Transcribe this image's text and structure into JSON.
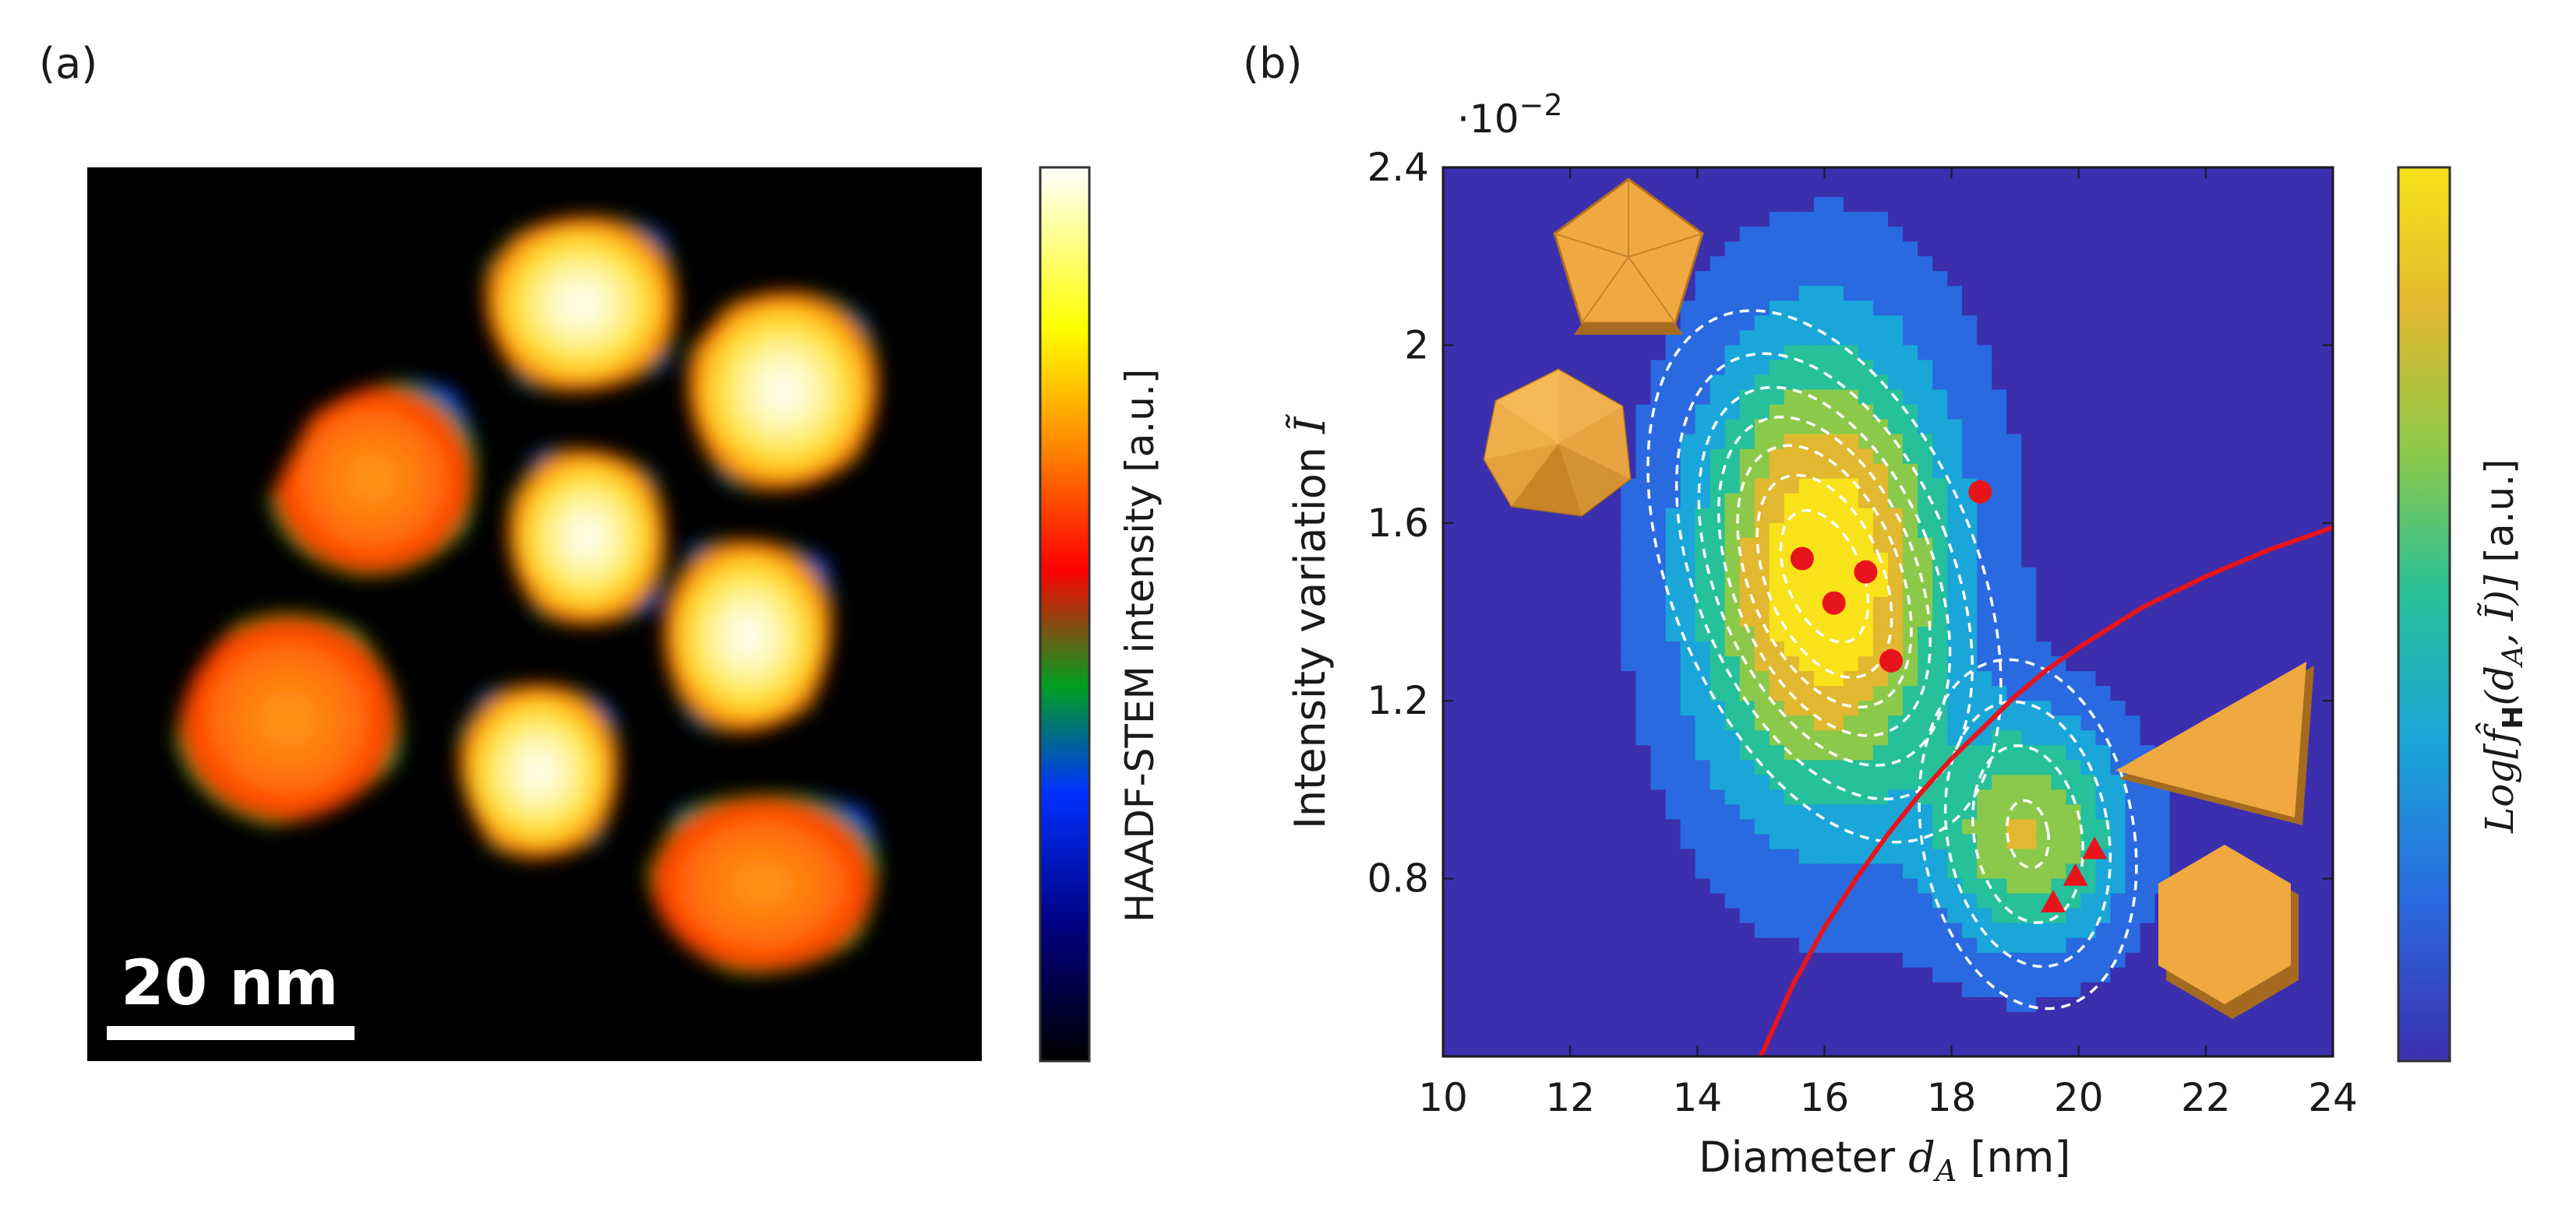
{
  "panels": {
    "a": {
      "label": "(a)",
      "scale_bar_text": "20 nm",
      "colorbar_label": "HAADF-STEM intensity [a.u.]"
    },
    "b": {
      "label": "(b)",
      "colorbar_label_math": "Log[f̂",
      "colorbar_label_sub": "H",
      "colorbar_label_args": "(d",
      "colorbar_label_args_sub": "A",
      "colorbar_label_args_tail": ", Ĩ)] ",
      "colorbar_label_unit": "[a.u.]",
      "y_multiplier_base": "·10",
      "y_multiplier_exp": "−2"
    }
  },
  "chart_data": {
    "type": "scatter",
    "xlabel_text": "Diameter ",
    "xlabel_math": "d",
    "xlabel_sub": "A",
    "xlabel_unit": " [nm]",
    "ylabel_text": "Intensity variation ",
    "ylabel_math": "Ĩ",
    "xlim": [
      10,
      24
    ],
    "ylim": [
      0.4,
      2.4
    ],
    "x_ticks": [
      10,
      12,
      14,
      16,
      18,
      20,
      22,
      24
    ],
    "x_tick_labels": [
      "10",
      "12",
      "14",
      "16",
      "18",
      "20",
      "22",
      "24"
    ],
    "y_ticks": [
      0.8,
      1.2,
      1.6,
      2.0,
      2.4
    ],
    "y_tick_labels": [
      "0.8",
      "1.2",
      "1.6",
      "2",
      "2.4"
    ],
    "series": [
      {
        "marker": "circle",
        "color": "#e8141c",
        "x": [
          15.65,
          16.15,
          16.65,
          17.05,
          18.45
        ],
        "y": [
          1.52,
          1.42,
          1.49,
          1.29,
          1.67
        ]
      },
      {
        "marker": "triangle",
        "color": "#e8141c",
        "x": [
          19.6,
          19.95,
          20.25
        ],
        "y": [
          0.745,
          0.805,
          0.865
        ]
      }
    ],
    "boundary": {
      "color": "#e8141c",
      "x": [
        15.0,
        15.5,
        16.0,
        16.5,
        17.0,
        17.5,
        18.0,
        18.5,
        19.0,
        19.5,
        20.0,
        21.0,
        22.0,
        23.0,
        24.0
      ],
      "y": [
        0.4,
        0.56,
        0.69,
        0.8,
        0.9,
        0.99,
        1.07,
        1.14,
        1.21,
        1.27,
        1.32,
        1.41,
        1.48,
        1.54,
        1.59
      ]
    },
    "density_peaks": [
      {
        "x": 16.0,
        "y": 1.48,
        "sx": 1.3,
        "sy": 0.34,
        "amp": 1.0
      },
      {
        "x": 19.2,
        "y": 0.9,
        "sx": 1.0,
        "sy": 0.17,
        "amp": 0.62
      }
    ],
    "colormap": [
      "#3b2fae",
      "#2a6ae0",
      "#1aa6d8",
      "#26c09a",
      "#8bc94a",
      "#e1b830",
      "#f8e21a"
    ]
  }
}
